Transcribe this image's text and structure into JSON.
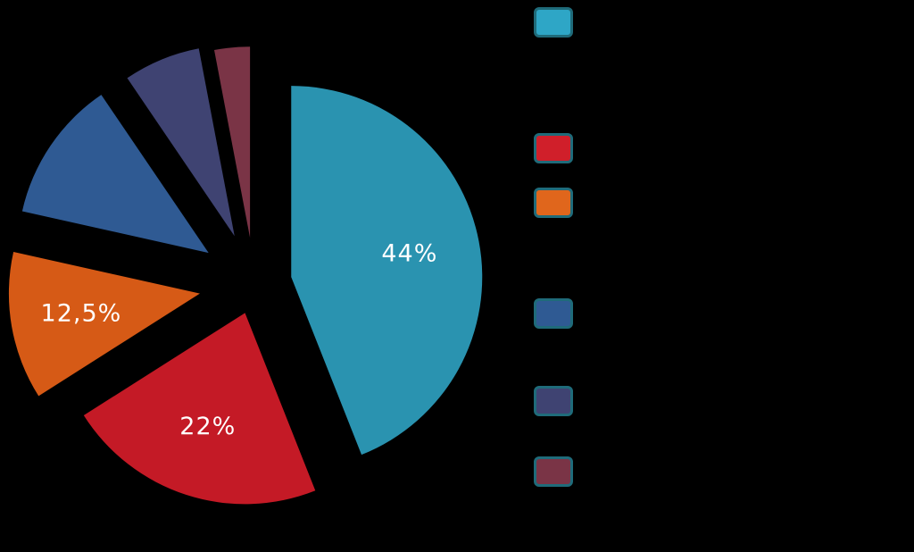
{
  "chart_data": {
    "type": "pie",
    "exploded": true,
    "slices": [
      {
        "value": 44,
        "label": "44%",
        "color": "#2a93b0"
      },
      {
        "value": 22,
        "label": "22%",
        "color": "#c41a26"
      },
      {
        "value": 12.5,
        "label": "12,5%",
        "color": "#d65a16"
      },
      {
        "value": 12,
        "label": "",
        "color": "#2f5a93"
      },
      {
        "value": 6.5,
        "label": "",
        "color": "#3f4372"
      },
      {
        "value": 3,
        "label": "",
        "color": "#7a3446"
      }
    ],
    "legend": {
      "placement": "right",
      "swatches": [
        "#2ea6c6",
        "#d01f2a",
        "#e0661c",
        "#2f5a93",
        "#3f4372",
        "#7a3446"
      ]
    }
  }
}
